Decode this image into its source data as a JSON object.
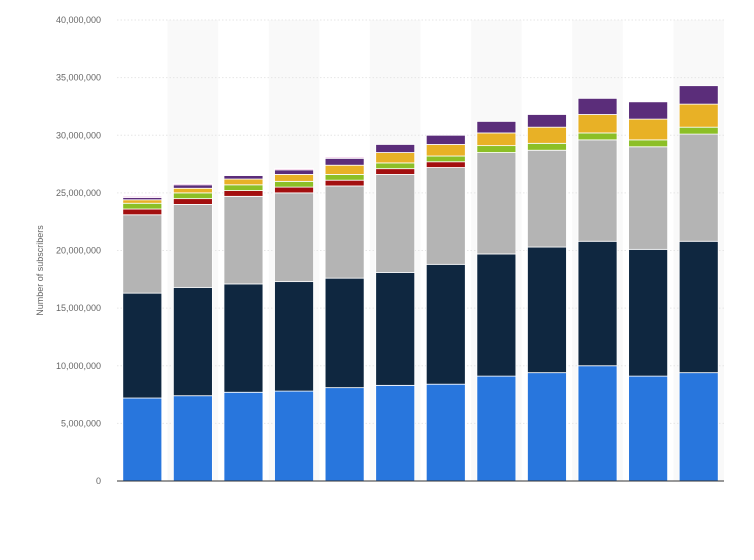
{
  "chart_data": {
    "type": "bar",
    "stacked": true,
    "title": "",
    "xlabel": "",
    "ylabel": "Number of subscribers",
    "ylim": [
      0,
      40000000
    ],
    "yticks": [
      0,
      5000000,
      10000000,
      15000000,
      20000000,
      25000000,
      30000000,
      35000000,
      40000000
    ],
    "ytick_labels": [
      "0",
      "5,000,000",
      "10,000,000",
      "15,000,000",
      "20,000,000",
      "25,000,000",
      "30,000,000",
      "35,000,000",
      "40,000,000"
    ],
    "grid": true,
    "categories": [
      "",
      "",
      "",
      "",
      "",
      "",
      "",
      "",
      "",
      "",
      "",
      ""
    ],
    "series": [
      {
        "color": "#2876dd",
        "values": [
          7200000,
          7400000,
          7700000,
          7800000,
          8100000,
          8300000,
          8400000,
          9100000,
          9400000,
          10000000,
          9100000,
          9400000
        ]
      },
      {
        "color": "#0f2740",
        "values": [
          9100000,
          9400000,
          9400000,
          9500000,
          9500000,
          9800000,
          10400000,
          10600000,
          10900000,
          10800000,
          11000000,
          11400000
        ]
      },
      {
        "color": "#b4b4b4",
        "values": [
          6800000,
          7200000,
          7600000,
          7700000,
          8000000,
          8500000,
          8400000,
          8800000,
          8400000,
          8800000,
          8900000,
          9300000
        ]
      },
      {
        "color": "#a30f0f",
        "values": [
          500000,
          500000,
          500000,
          500000,
          500000,
          500000,
          500000,
          0,
          0,
          0,
          0,
          0
        ]
      },
      {
        "color": "#8cbf26",
        "values": [
          500000,
          500000,
          500000,
          500000,
          500000,
          500000,
          500000,
          600000,
          600000,
          600000,
          600000,
          600000
        ]
      },
      {
        "color": "#e8b126",
        "values": [
          300000,
          400000,
          500000,
          600000,
          800000,
          900000,
          1000000,
          1100000,
          1400000,
          1600000,
          1800000,
          2000000
        ]
      },
      {
        "color": "#5b2d7a",
        "values": [
          200000,
          300000,
          300000,
          400000,
          600000,
          700000,
          800000,
          1000000,
          1100000,
          1400000,
          1500000,
          1600000
        ]
      },
      {
        "color": "#e99ad6",
        "values": [
          100000,
          100000,
          0,
          100000,
          100000,
          0,
          0,
          0,
          0,
          0,
          0,
          0
        ]
      }
    ]
  }
}
